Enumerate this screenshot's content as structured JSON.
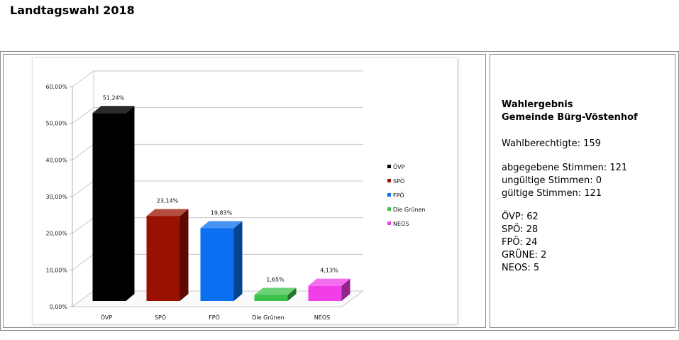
{
  "page": {
    "title": "Landtagswahl 2018"
  },
  "info": {
    "heading_lines": [
      "Wahlergebnis",
      "Gemeinde Bürg-Vöstenhof"
    ],
    "eligible": "Wahlberechtigte: 159",
    "votes": [
      "abgegebene Stimmen: 121",
      "ungültige Stimmen: 0",
      "gültige Stimmen: 121"
    ],
    "parties": [
      "ÖVP: 62",
      "SPÖ: 28",
      "FPÖ: 24",
      "GRÜNE: 2",
      "NEOS: 5"
    ]
  },
  "chart_data": {
    "type": "bar",
    "title": "",
    "xlabel": "",
    "ylabel": "",
    "categories": [
      "ÖVP",
      "SPÖ",
      "FPÖ",
      "Die Grünen",
      "NEOS"
    ],
    "values": [
      51.24,
      23.14,
      19.83,
      1.65,
      4.13
    ],
    "data_labels": [
      "51,24%",
      "23,14%",
      "19,83%",
      "1,65%",
      "4,13%"
    ],
    "ylim": [
      0,
      60
    ],
    "yticks": [
      0,
      10,
      20,
      30,
      40,
      50,
      60
    ],
    "ytick_labels": [
      "0,00%",
      "10,00%",
      "20,00%",
      "30,00%",
      "40,00%",
      "50,00%",
      "60,00%"
    ],
    "colors": [
      "#000000",
      "#991100",
      "#0a6ff0",
      "#3cc24a",
      "#f23ee8"
    ],
    "grid": true,
    "style": "3d",
    "legend": {
      "position": "right",
      "entries": [
        "ÖVP",
        "SPÖ",
        "FPÖ",
        "Die Grünen",
        "NEOS"
      ]
    }
  }
}
